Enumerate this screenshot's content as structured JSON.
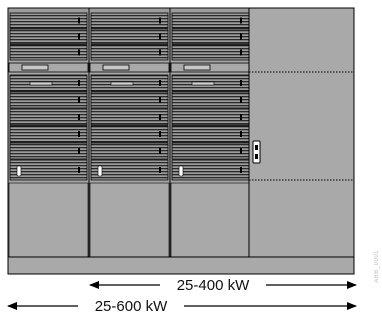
{
  "figure": {
    "cabinets": {
      "module_cabinet_count": 3,
      "extra_cabinet_count": 1,
      "modules_per_cabinet": 10
    },
    "colors": {
      "cabinet_fill": "#a9a9a9",
      "module_fill": "#9c9c9c",
      "stripe": "#2a2a2a",
      "outline": "#000000",
      "highlight": "#ffffff"
    },
    "dimensions": {
      "inner_label": "25-400 kW",
      "outer_label": "25-600 kW"
    },
    "side_note": "ABB_0001"
  }
}
